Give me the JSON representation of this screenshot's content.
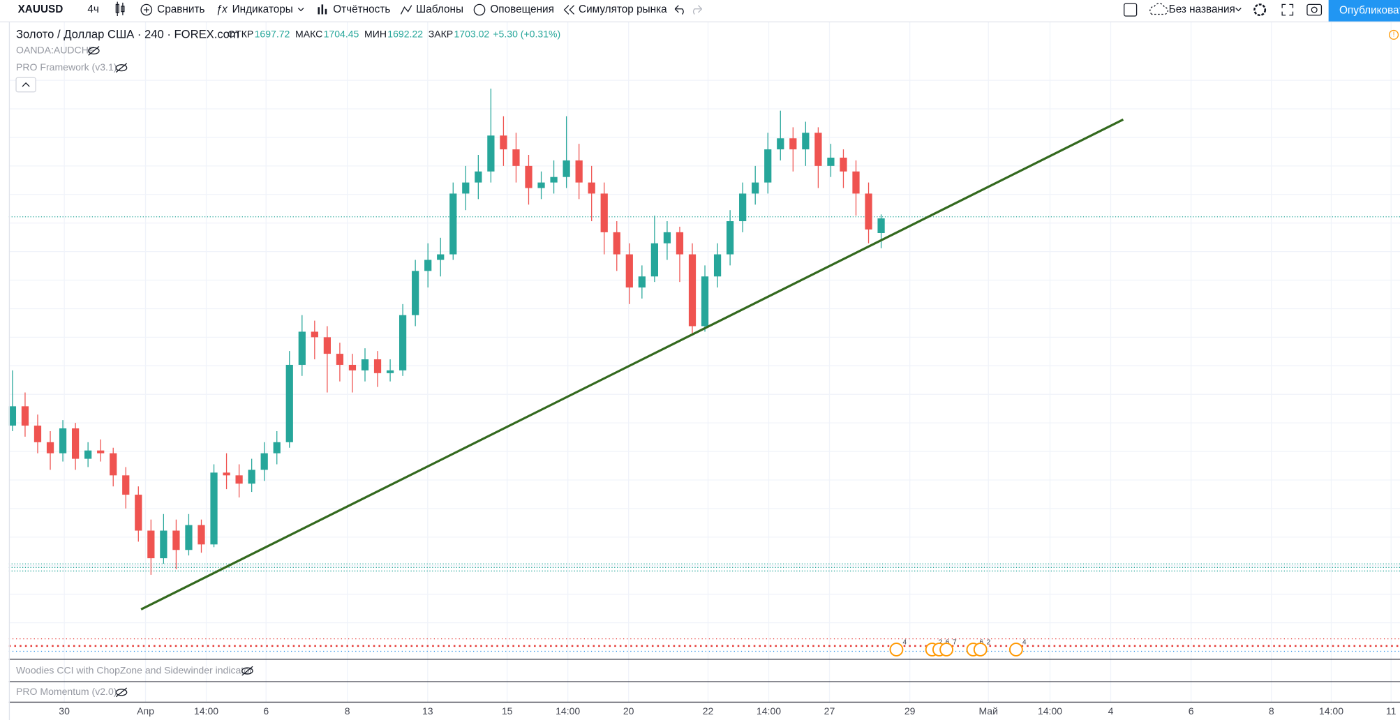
{
  "toolbar": {
    "symbol": "XAUUSD",
    "interval": "4ч",
    "compare": "Сравнить",
    "indicators": "Индикаторы",
    "financials": "Отчётность",
    "templates": "Шаблоны",
    "alerts": "Оповещения",
    "replay": "Симулятор рынка",
    "layout_name": "Без названия",
    "publish": "Опубликовать"
  },
  "legend": {
    "title": "Золото / Доллар США · 240 · FOREX.com",
    "open_label": "ОТКР",
    "open": 1697.72,
    "high_label": "МАКС",
    "high": 1704.45,
    "low_label": "МИН",
    "low": 1692.22,
    "close_label": "ЗАКР",
    "close": 1703.02,
    "change": "+5.30 (+0.31%)",
    "studies": [
      "OANDA:AUDCHF",
      "PRO Framework (v3.1)"
    ]
  },
  "panes": [
    "Woodies CCI with ChopZone and Sidewinder indicator",
    "PRO Momentum (v2.0)"
  ],
  "events": [
    4,
    2,
    6,
    7,
    6,
    2,
    4
  ],
  "chart_data": {
    "type": "candlestick",
    "ylim": [
      1556,
      1753
    ],
    "x_labels": [
      "30",
      "Апр",
      "14:00",
      "6",
      "8",
      "13",
      "15",
      "14:00",
      "20",
      "22",
      "14:00",
      "27",
      "29",
      "Май",
      "14:00",
      "4",
      "6",
      "8",
      "14:00",
      "11"
    ],
    "candles": [
      [
        1628,
        1648,
        1626,
        1635
      ],
      [
        1635,
        1640,
        1624,
        1628
      ],
      [
        1628,
        1632,
        1618,
        1622
      ],
      [
        1622,
        1626,
        1612,
        1618
      ],
      [
        1618,
        1630,
        1615,
        1627
      ],
      [
        1627,
        1629,
        1612,
        1616
      ],
      [
        1616,
        1622,
        1613,
        1619
      ],
      [
        1619,
        1623,
        1615,
        1618
      ],
      [
        1618,
        1620,
        1606,
        1610
      ],
      [
        1610,
        1613,
        1598,
        1603
      ],
      [
        1603,
        1606,
        1586,
        1590
      ],
      [
        1590,
        1594,
        1574,
        1580
      ],
      [
        1580,
        1596,
        1578,
        1590
      ],
      [
        1590,
        1594,
        1576,
        1583
      ],
      [
        1583,
        1596,
        1581,
        1592
      ],
      [
        1592,
        1594,
        1582,
        1585
      ],
      [
        1585,
        1614,
        1584,
        1611
      ],
      [
        1611,
        1618,
        1605,
        1610
      ],
      [
        1610,
        1614,
        1602,
        1607
      ],
      [
        1607,
        1616,
        1604,
        1612
      ],
      [
        1612,
        1622,
        1608,
        1618
      ],
      [
        1618,
        1626,
        1614,
        1622
      ],
      [
        1622,
        1655,
        1620,
        1650
      ],
      [
        1650,
        1668,
        1646,
        1662
      ],
      [
        1662,
        1666,
        1652,
        1660
      ],
      [
        1660,
        1664,
        1640,
        1654
      ],
      [
        1654,
        1658,
        1644,
        1650
      ],
      [
        1650,
        1654,
        1640,
        1648
      ],
      [
        1648,
        1656,
        1644,
        1652
      ],
      [
        1652,
        1655,
        1642,
        1647
      ],
      [
        1647,
        1652,
        1644,
        1648
      ],
      [
        1648,
        1672,
        1646,
        1668
      ],
      [
        1668,
        1688,
        1664,
        1684
      ],
      [
        1684,
        1694,
        1678,
        1688
      ],
      [
        1688,
        1696,
        1682,
        1690
      ],
      [
        1690,
        1716,
        1688,
        1712
      ],
      [
        1712,
        1722,
        1706,
        1716
      ],
      [
        1716,
        1726,
        1710,
        1720
      ],
      [
        1720,
        1750,
        1716,
        1733
      ],
      [
        1733,
        1740,
        1722,
        1728
      ],
      [
        1728,
        1734,
        1716,
        1722
      ],
      [
        1722,
        1726,
        1708,
        1714
      ],
      [
        1714,
        1720,
        1710,
        1716
      ],
      [
        1716,
        1724,
        1712,
        1718
      ],
      [
        1718,
        1740,
        1714,
        1724
      ],
      [
        1724,
        1730,
        1710,
        1716
      ],
      [
        1716,
        1722,
        1702,
        1712
      ],
      [
        1712,
        1716,
        1690,
        1698
      ],
      [
        1698,
        1702,
        1684,
        1690
      ],
      [
        1690,
        1694,
        1672,
        1678
      ],
      [
        1678,
        1686,
        1674,
        1682
      ],
      [
        1682,
        1704,
        1680,
        1694
      ],
      [
        1694,
        1702,
        1688,
        1698
      ],
      [
        1698,
        1700,
        1680,
        1690
      ],
      [
        1690,
        1694,
        1661,
        1664
      ],
      [
        1664,
        1686,
        1662,
        1682
      ],
      [
        1682,
        1694,
        1678,
        1690
      ],
      [
        1690,
        1706,
        1686,
        1702
      ],
      [
        1702,
        1716,
        1698,
        1712
      ],
      [
        1712,
        1722,
        1708,
        1716
      ],
      [
        1716,
        1734,
        1712,
        1728
      ],
      [
        1728,
        1742,
        1724,
        1732
      ],
      [
        1732,
        1736,
        1720,
        1728
      ],
      [
        1728,
        1738,
        1722,
        1734
      ],
      [
        1734,
        1736,
        1714,
        1722
      ],
      [
        1722,
        1730,
        1718,
        1725
      ],
      [
        1725,
        1728,
        1714,
        1720
      ],
      [
        1720,
        1724,
        1704,
        1712
      ],
      [
        1712,
        1716,
        1694,
        1699
      ],
      [
        1697.72,
        1704.45,
        1692.22,
        1703.02
      ]
    ]
  }
}
